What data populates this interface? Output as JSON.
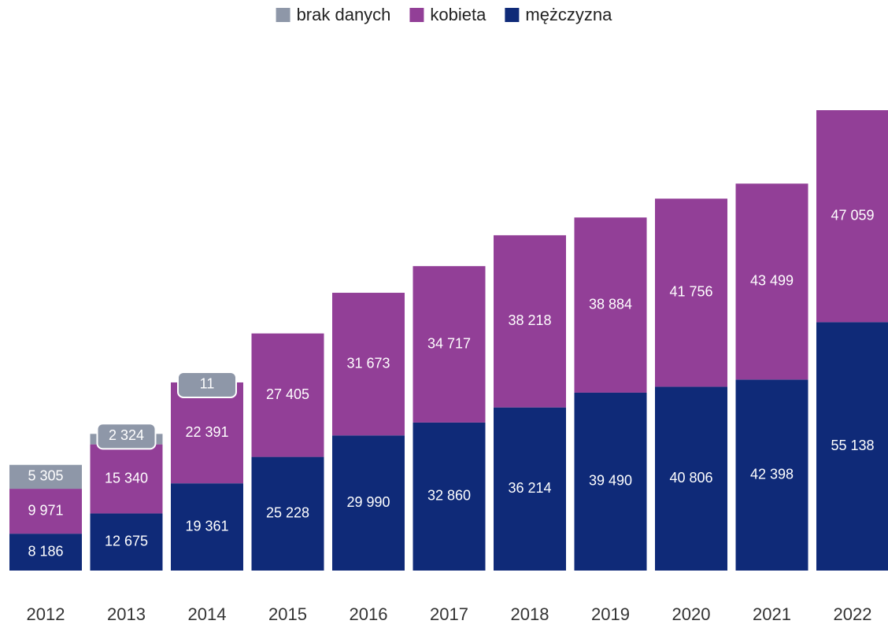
{
  "chart_data": {
    "type": "stacked_bar",
    "categories": [
      "2012",
      "2013",
      "2014",
      "2015",
      "2016",
      "2017",
      "2018",
      "2019",
      "2020",
      "2021",
      "2022"
    ],
    "series": [
      {
        "name": "mężczyzna",
        "color": "#0f2a78",
        "values": [
          8186,
          12675,
          19361,
          25228,
          29990,
          32860,
          36214,
          39490,
          40806,
          42398,
          55138
        ],
        "value_labels": [
          "8 186",
          "12 675",
          "19 361",
          "25 228",
          "29 990",
          "32 860",
          "36 214",
          "39 490",
          "40 806",
          "42 398",
          "55 138"
        ]
      },
      {
        "name": "kobieta",
        "color": "#923f97",
        "values": [
          9971,
          15340,
          22391,
          27405,
          31673,
          34717,
          38218,
          38884,
          41756,
          43499,
          47059
        ],
        "value_labels": [
          "9 971",
          "15 340",
          "22 391",
          "27 405",
          "31 673",
          "34 717",
          "38 218",
          "38 884",
          "41 756",
          "43 499",
          "47 059"
        ]
      },
      {
        "name": "brak danych",
        "color": "#8e97a8",
        "values": [
          5305,
          2324,
          11,
          null,
          null,
          null,
          null,
          null,
          null,
          null,
          null
        ],
        "value_labels": [
          "5 305",
          "2 324",
          "11",
          null,
          null,
          null,
          null,
          null,
          null,
          null,
          null
        ]
      }
    ],
    "legend": "top"
  }
}
